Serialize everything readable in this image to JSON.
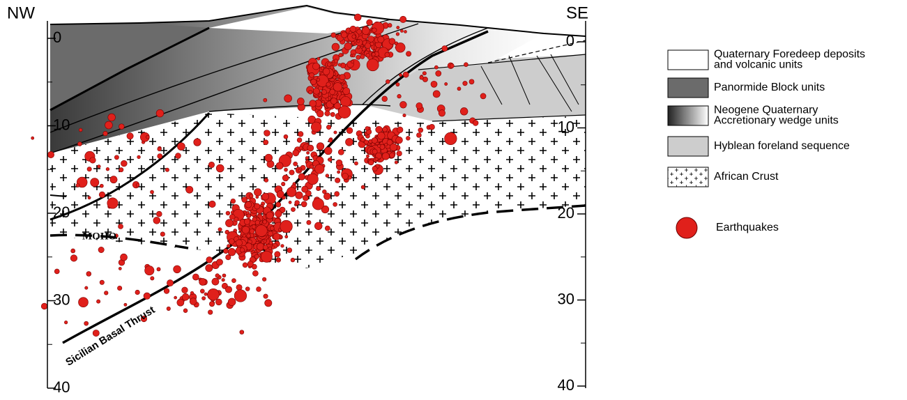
{
  "labels": {
    "nw": "NW",
    "se": "SE",
    "moho": "MOHO",
    "thrust": "Sicilian Basal Thrust"
  },
  "depth_axis": {
    "left": [
      0,
      10,
      20,
      30,
      40
    ],
    "right": [
      0,
      10,
      20,
      30,
      40
    ]
  },
  "legend": {
    "items": [
      {
        "lines": [
          "Quaternary Foredeep deposits",
          "and volcanic units"
        ]
      },
      {
        "lines": [
          "Panormide Block units"
        ]
      },
      {
        "lines": [
          "Neogene Quaternary",
          "Accretionary wedge units"
        ]
      },
      {
        "lines": [
          "Hyblean foreland sequence"
        ]
      },
      {
        "lines": [
          "African Crust"
        ]
      }
    ],
    "earthquakes": "Earthquakes"
  }
}
